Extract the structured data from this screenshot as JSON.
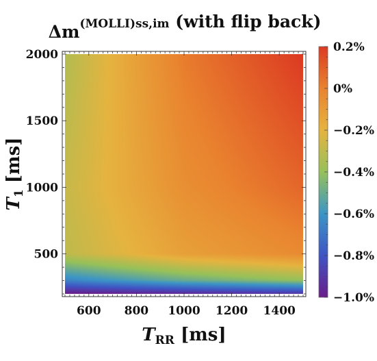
{
  "chart_data": {
    "type": "heatmap",
    "title": {
      "prefix": "Δm",
      "superscript": "(MOLLI)",
      "subscript": "ss,im",
      "suffix": " (with flip back)"
    },
    "xlabel": {
      "main": "T",
      "sub": "RR",
      "unit": " [ms]"
    },
    "ylabel": {
      "main": "T",
      "sub": "1",
      "unit": " [ms]"
    },
    "xlim": [
      500,
      1500
    ],
    "ylim": [
      200,
      2000
    ],
    "x_ticks": [
      600,
      800,
      1000,
      1200,
      1400
    ],
    "y_ticks": [
      500,
      1000,
      1500,
      2000
    ],
    "x_tick_labels": [
      "600",
      "800",
      "1000",
      "1200",
      "1400"
    ],
    "y_tick_labels": [
      "500",
      "1000",
      "1500",
      "2000"
    ],
    "colorbar": {
      "range": [
        -1.0,
        0.2
      ],
      "ticks": [
        0.2,
        0.0,
        -0.2,
        -0.4,
        -0.6,
        -0.8,
        -1.0
      ],
      "tick_labels": [
        "0.2%",
        "0%",
        "−0.2%",
        "−0.4%",
        "−0.6%",
        "−0.8%",
        "−1.0%"
      ],
      "colors": [
        "#6a1e8a",
        "#3f54c4",
        "#3c95c6",
        "#96c15a",
        "#e6b33f",
        "#e9832f",
        "#dc3a22"
      ]
    },
    "approx_values": {
      "x": [
        500,
        1000,
        1500
      ],
      "y": [
        200,
        300,
        500,
        1000,
        2000
      ],
      "z": [
        [
          -1.0,
          -0.95,
          -0.9
        ],
        [
          -0.65,
          -0.5,
          -0.4
        ],
        [
          -0.3,
          -0.12,
          -0.03
        ],
        [
          -0.28,
          -0.05,
          0.08
        ],
        [
          -0.33,
          0.02,
          0.2
        ]
      ]
    },
    "grid": false
  }
}
